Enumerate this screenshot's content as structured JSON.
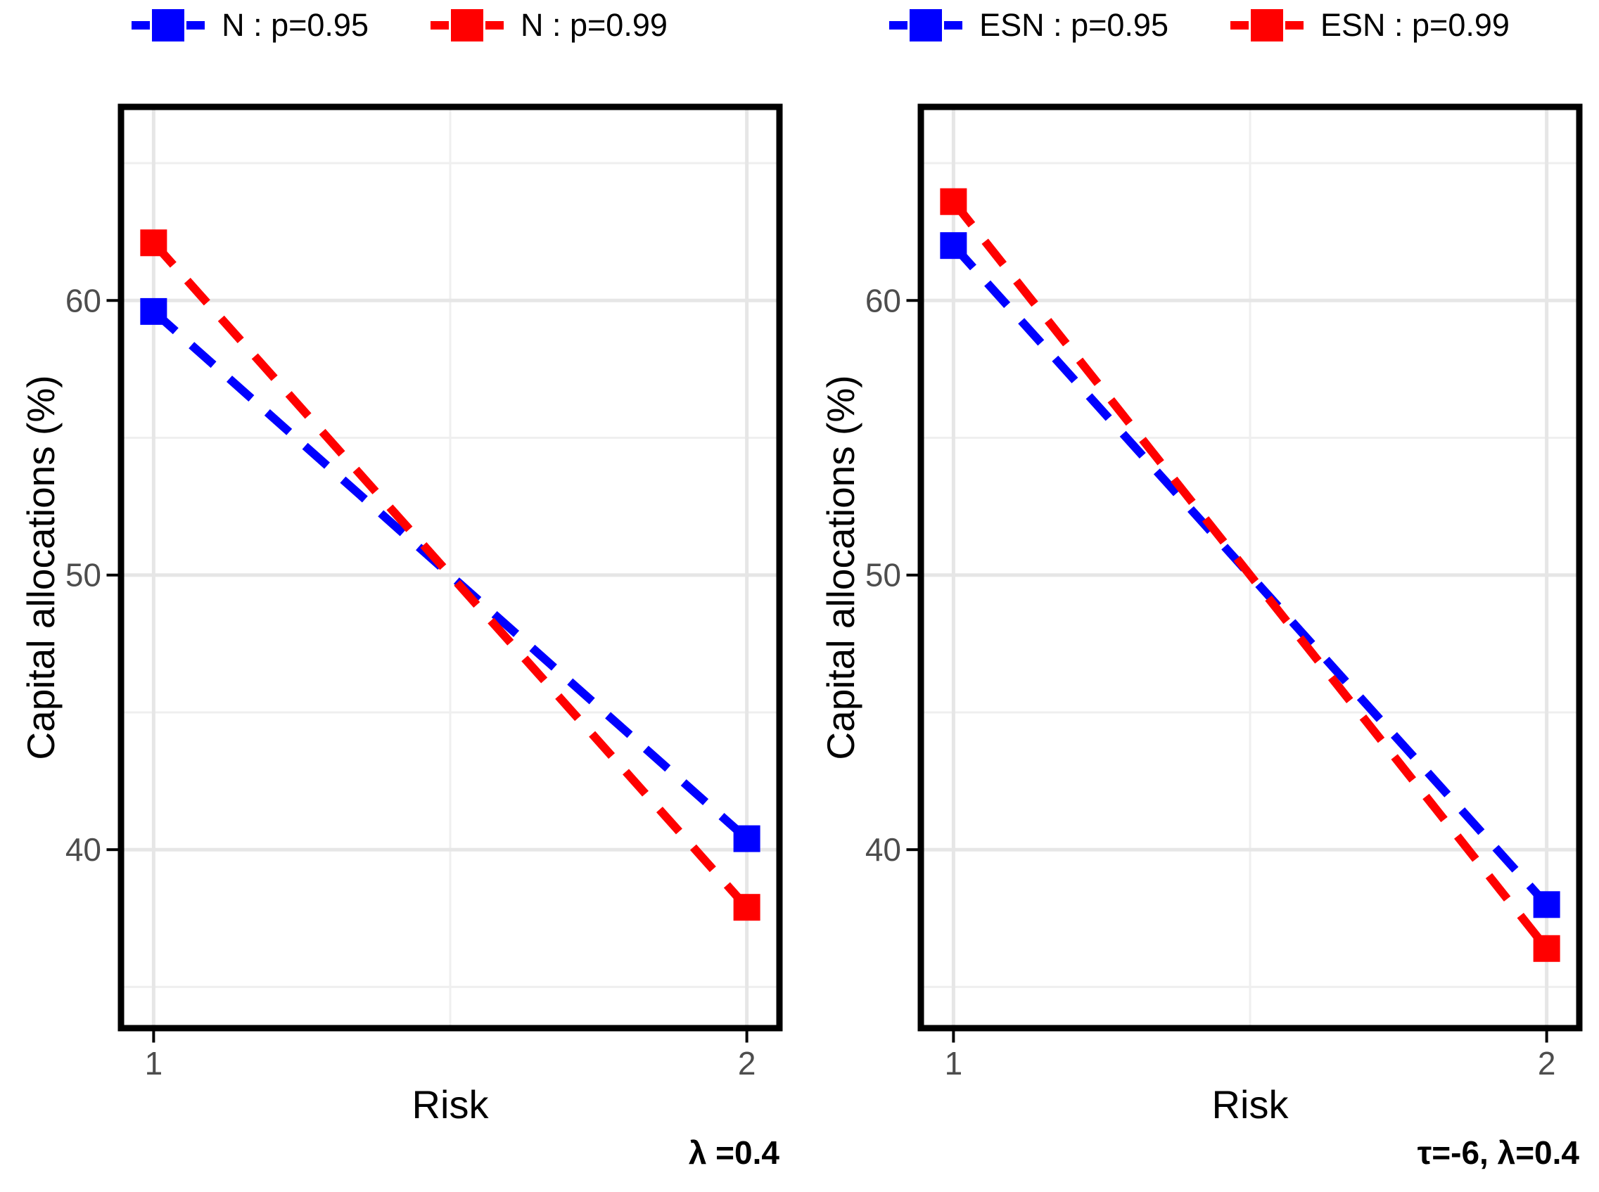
{
  "colors": {
    "blue": "#0000ff",
    "red": "#ff0000",
    "grid_major": "#e6e6e6",
    "grid_minor": "#efefef",
    "tick_label": "#4d4d4d",
    "axis_text": "#000000",
    "panel_border": "#000000",
    "background": "#ffffff"
  },
  "chart_data": [
    {
      "type": "line",
      "title": "",
      "x": [
        1,
        2
      ],
      "series": [
        {
          "name": "N : p=0.95",
          "color": "#0000ff",
          "values": [
            59.6,
            40.4
          ]
        },
        {
          "name": "N : p=0.99",
          "color": "#ff0000",
          "values": [
            62.1,
            37.9
          ]
        }
      ],
      "xlabel": "Risk",
      "ylabel": "Capital allocations (%)",
      "caption": "λ =0.4",
      "xlim": [
        0.945,
        2.055
      ],
      "ylim": [
        33.5,
        67.05
      ],
      "x_ticks": [
        1,
        2
      ],
      "y_ticks": [
        40,
        50,
        60
      ],
      "x_minor": [
        1.5
      ],
      "y_minor": [
        35,
        45,
        55,
        65
      ],
      "grid": true,
      "legend_position": "top",
      "line_style": "dashed",
      "marker": "square"
    },
    {
      "type": "line",
      "title": "",
      "x": [
        1,
        2
      ],
      "series": [
        {
          "name": "ESN : p=0.95",
          "color": "#0000ff",
          "values": [
            62.0,
            38.0
          ]
        },
        {
          "name": "ESN : p=0.99",
          "color": "#ff0000",
          "values": [
            63.6,
            36.4
          ]
        }
      ],
      "xlabel": "Risk",
      "ylabel": "Capital allocations (%)",
      "caption": "τ=-6, λ=0.4",
      "xlim": [
        0.945,
        2.055
      ],
      "ylim": [
        33.5,
        67.05
      ],
      "x_ticks": [
        1,
        2
      ],
      "y_ticks": [
        40,
        50,
        60
      ],
      "x_minor": [
        1.5
      ],
      "y_minor": [
        35,
        45,
        55,
        65
      ],
      "grid": true,
      "legend_position": "top",
      "line_style": "dashed",
      "marker": "square"
    }
  ]
}
